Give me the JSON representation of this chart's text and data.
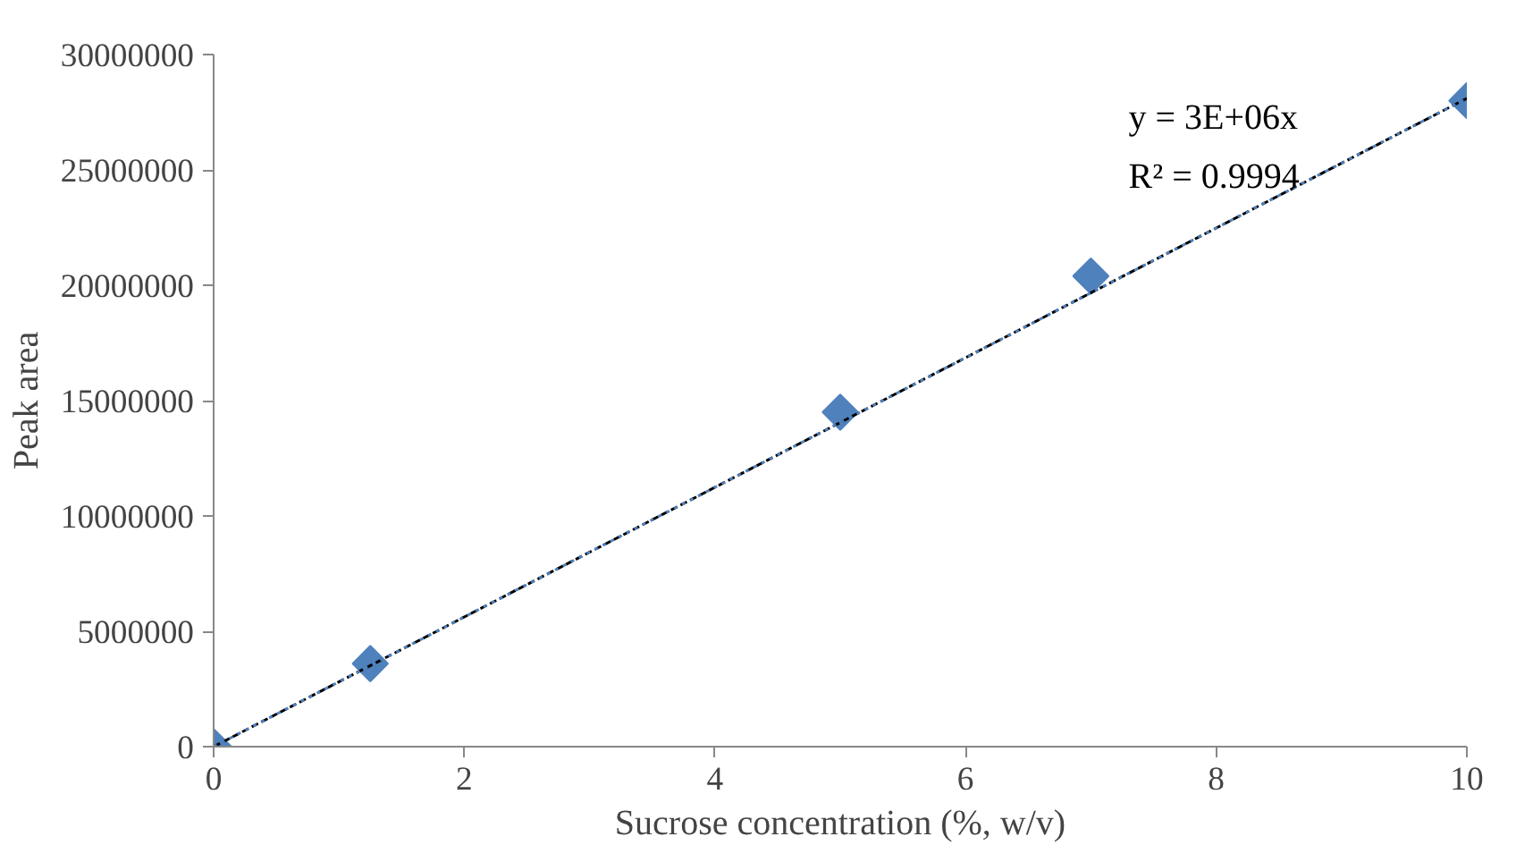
{
  "chart_data": {
    "type": "scatter",
    "xlabel": "Sucrose concentration (%, w/v)",
    "ylabel": "Peak area",
    "series": [
      {
        "color": "#4f81bd",
        "marker": "diamond",
        "x": [
          0,
          1.25,
          5,
          7,
          10
        ],
        "values": [
          0,
          3600000,
          14500000,
          20400000,
          28000000
        ]
      },
      {
        "type": "line",
        "color": "#000000",
        "line_style": "dashed",
        "marker": "none",
        "x": [
          0,
          10
        ],
        "values": [
          0,
          28100000
        ]
      },
      {
        "type": "line",
        "color": "#4f81bd",
        "line_style": "dotted",
        "marker": "none",
        "x": [
          0,
          10
        ],
        "values": [
          0,
          28100000
        ]
      }
    ],
    "annotations": [
      "y = 3E+06x",
      "R² = 0.9994"
    ],
    "xlim": [
      0,
      10
    ],
    "xticks": [
      0,
      2,
      4,
      6,
      8,
      10
    ],
    "ylim": [
      0,
      30000000
    ],
    "yticks": [
      0,
      5000000,
      10000000,
      15000000,
      20000000,
      25000000,
      30000000
    ],
    "grid": false
  }
}
